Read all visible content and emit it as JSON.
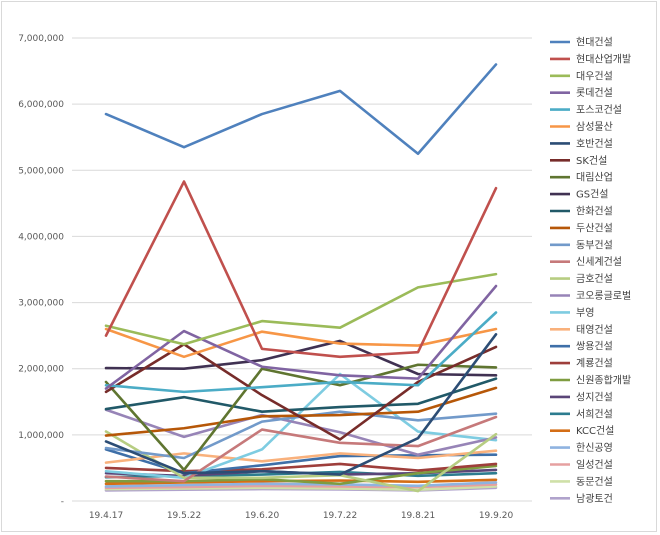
{
  "chart_data": {
    "type": "line",
    "title": "",
    "xlabel": "",
    "ylabel": "",
    "categories": [
      "19.4.17",
      "19.5.22",
      "19.6.20",
      "19.7.22",
      "19.8.21",
      "19.9.20"
    ],
    "ylim": [
      0,
      7000000
    ],
    "yticks": [
      0,
      1000000,
      2000000,
      3000000,
      4000000,
      5000000,
      6000000,
      7000000
    ],
    "ytick_labels": [
      "-",
      "1,000,000",
      "2,000,000",
      "3,000,000",
      "4,000,000",
      "5,000,000",
      "6,000,000",
      "7,000,000"
    ],
    "grid": "horizontal",
    "legend": "right",
    "series": [
      {
        "name": "현대건설",
        "color": "#4f81bd",
        "values": [
          5850000,
          5350000,
          5850000,
          6200000,
          5250000,
          6600000
        ]
      },
      {
        "name": "현대산업개발",
        "color": "#c0504d",
        "values": [
          2500000,
          4830000,
          2300000,
          2180000,
          2250000,
          4730000
        ]
      },
      {
        "name": "대우건설",
        "color": "#9bbb59",
        "values": [
          2650000,
          2370000,
          2720000,
          2620000,
          3230000,
          3430000
        ]
      },
      {
        "name": "롯데건설",
        "color": "#8064a2",
        "values": [
          1700000,
          2570000,
          2030000,
          1900000,
          1850000,
          3250000
        ]
      },
      {
        "name": "포스코건설",
        "color": "#4bacc6",
        "values": [
          1750000,
          1650000,
          1720000,
          1800000,
          1750000,
          2850000
        ]
      },
      {
        "name": "삼성물산",
        "color": "#f79646",
        "values": [
          2600000,
          2180000,
          2560000,
          2380000,
          2350000,
          2600000
        ]
      },
      {
        "name": "호반건설",
        "color": "#2c4d75",
        "values": [
          900000,
          420000,
          450000,
          400000,
          950000,
          2520000
        ]
      },
      {
        "name": "SK건설",
        "color": "#772c2a",
        "values": [
          1650000,
          2370000,
          1600000,
          930000,
          1800000,
          2330000
        ]
      },
      {
        "name": "대림산업",
        "color": "#5f7530",
        "values": [
          1800000,
          470000,
          2000000,
          1750000,
          2060000,
          2020000
        ]
      },
      {
        "name": "GS건설",
        "color": "#403152",
        "values": [
          2010000,
          2000000,
          2130000,
          2420000,
          1920000,
          1900000
        ]
      },
      {
        "name": "한화건설",
        "color": "#215968",
        "values": [
          1390000,
          1570000,
          1350000,
          1420000,
          1470000,
          1850000
        ]
      },
      {
        "name": "두산건설",
        "color": "#b65708",
        "values": [
          990000,
          1100000,
          1280000,
          1300000,
          1350000,
          1710000
        ]
      },
      {
        "name": "동부건설",
        "color": "#729aca",
        "values": [
          800000,
          650000,
          1200000,
          1350000,
          1220000,
          1320000
        ]
      },
      {
        "name": "신세계건설",
        "color": "#c6797a",
        "values": [
          370000,
          300000,
          1080000,
          880000,
          830000,
          1270000
        ]
      },
      {
        "name": "금호건설",
        "color": "#b7cd82",
        "values": [
          1050000,
          350000,
          350000,
          390000,
          150000,
          1010000
        ]
      },
      {
        "name": "코오롱글로벌",
        "color": "#9784b7",
        "values": [
          1380000,
          970000,
          1300000,
          1040000,
          700000,
          960000
        ]
      },
      {
        "name": "부영",
        "color": "#7ecce1",
        "values": [
          450000,
          350000,
          780000,
          1920000,
          1050000,
          920000
        ]
      },
      {
        "name": "태영건설",
        "color": "#f9b17c",
        "values": [
          580000,
          720000,
          600000,
          720000,
          650000,
          760000
        ]
      },
      {
        "name": "쌍용건설",
        "color": "#3e6fa8",
        "values": [
          780000,
          420000,
          540000,
          680000,
          690000,
          700000
        ]
      },
      {
        "name": "계룡건설",
        "color": "#9e3e3b",
        "values": [
          500000,
          450000,
          480000,
          560000,
          460000,
          560000
        ]
      },
      {
        "name": "신원종합개발",
        "color": "#7f9c40",
        "values": [
          300000,
          300000,
          330000,
          260000,
          420000,
          530000
        ]
      },
      {
        "name": "성지건설",
        "color": "#5a4578",
        "values": [
          420000,
          380000,
          450000,
          400000,
          420000,
          470000
        ]
      },
      {
        "name": "서희건설",
        "color": "#2c7c8f",
        "values": [
          360000,
          380000,
          400000,
          440000,
          380000,
          420000
        ]
      },
      {
        "name": "KCC건설",
        "color": "#d46e16",
        "values": [
          260000,
          280000,
          300000,
          310000,
          290000,
          320000
        ]
      },
      {
        "name": "한신공영",
        "color": "#8fb3e0",
        "values": [
          220000,
          240000,
          260000,
          250000,
          230000,
          280000
        ]
      },
      {
        "name": "일성건설",
        "color": "#e6a0a0",
        "values": [
          200000,
          210000,
          230000,
          220000,
          210000,
          250000
        ]
      },
      {
        "name": "동문건설",
        "color": "#cfe0a8",
        "values": [
          180000,
          190000,
          200000,
          190000,
          170000,
          220000
        ]
      },
      {
        "name": "남광토건",
        "color": "#b0a3cc",
        "values": [
          160000,
          170000,
          180000,
          175000,
          160000,
          200000
        ]
      }
    ]
  }
}
